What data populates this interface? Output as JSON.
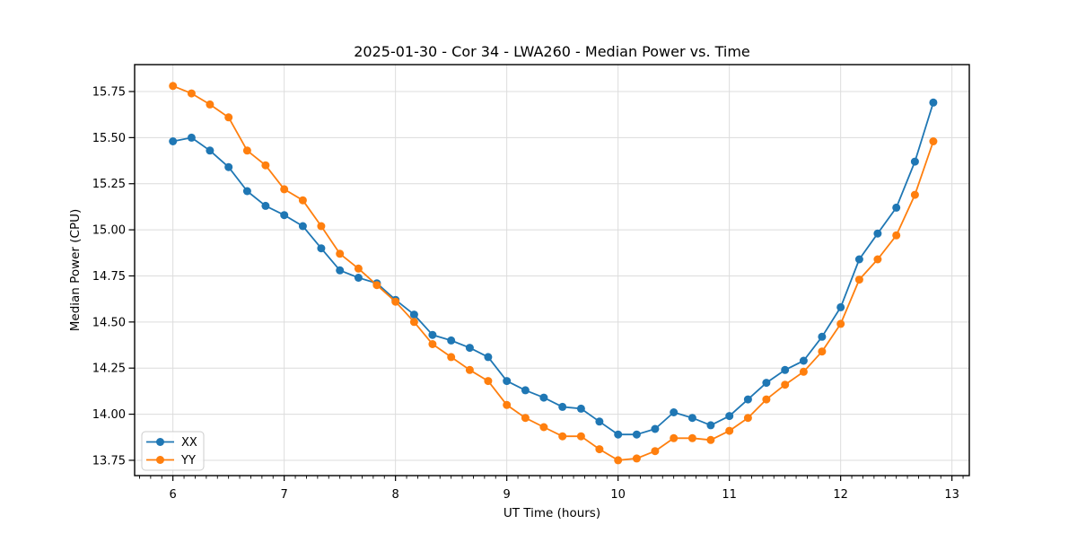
{
  "chart_data": {
    "type": "line",
    "title": "2025-01-30 - Cor 34 - LWA260 - Median Power vs. Time",
    "xlabel": "UT Time (hours)",
    "ylabel": "Median Power (CPU)",
    "x": [
      6.0,
      6.167,
      6.333,
      6.5,
      6.667,
      6.833,
      7.0,
      7.167,
      7.333,
      7.5,
      7.667,
      7.833,
      8.0,
      8.167,
      8.333,
      8.5,
      8.667,
      8.833,
      9.0,
      9.167,
      9.333,
      9.5,
      9.667,
      9.833,
      10.0,
      10.167,
      10.333,
      10.5,
      10.667,
      10.833,
      11.0,
      11.167,
      11.333,
      11.5,
      11.667,
      11.833,
      12.0,
      12.167,
      12.333,
      12.5,
      12.667,
      12.833
    ],
    "series": [
      {
        "name": "XX",
        "color": "#1f77b4",
        "values": [
          15.48,
          15.5,
          15.43,
          15.34,
          15.21,
          15.13,
          15.08,
          15.02,
          14.9,
          14.78,
          14.74,
          14.71,
          14.62,
          14.54,
          14.43,
          14.4,
          14.36,
          14.31,
          14.18,
          14.13,
          14.09,
          14.04,
          14.03,
          13.96,
          13.89,
          13.89,
          13.92,
          14.01,
          13.98,
          13.94,
          13.99,
          14.08,
          14.17,
          14.24,
          14.29,
          14.42,
          14.58,
          14.84,
          14.98,
          15.12,
          15.37,
          15.69
        ]
      },
      {
        "name": "YY",
        "color": "#ff7f0e",
        "values": [
          15.78,
          15.74,
          15.68,
          15.61,
          15.43,
          15.35,
          15.22,
          15.16,
          15.02,
          14.87,
          14.79,
          14.7,
          14.61,
          14.5,
          14.38,
          14.31,
          14.24,
          14.18,
          14.05,
          13.98,
          13.93,
          13.88,
          13.88,
          13.81,
          13.75,
          13.76,
          13.8,
          13.87,
          13.87,
          13.86,
          13.91,
          13.98,
          14.08,
          14.16,
          14.23,
          14.34,
          14.49,
          14.73,
          14.84,
          14.97,
          15.19,
          15.48
        ]
      }
    ],
    "xticks": {
      "values": [
        6,
        7,
        8,
        9,
        10,
        11,
        12,
        13
      ],
      "labels": [
        "6",
        "7",
        "8",
        "9",
        "10",
        "11",
        "12",
        "13"
      ]
    },
    "yticks": {
      "values": [
        13.75,
        14.0,
        14.25,
        14.5,
        14.75,
        15.0,
        15.25,
        15.5,
        15.75
      ],
      "labels": [
        "13.75",
        "14.00",
        "14.25",
        "14.50",
        "14.75",
        "15.00",
        "15.25",
        "15.50",
        "15.75"
      ]
    },
    "xlim": [
      5.656,
      13.156
    ],
    "ylim": [
      13.667,
      15.896
    ],
    "x_minor_step": 0.1,
    "grid": true,
    "legend": {
      "position": "lower left",
      "entries": [
        "XX",
        "YY"
      ]
    },
    "colors": {
      "grid": "#dcdcdc",
      "spine": "#000000",
      "tick": "#000000",
      "legend_border": "#cccccc",
      "background": "#ffffff"
    }
  }
}
